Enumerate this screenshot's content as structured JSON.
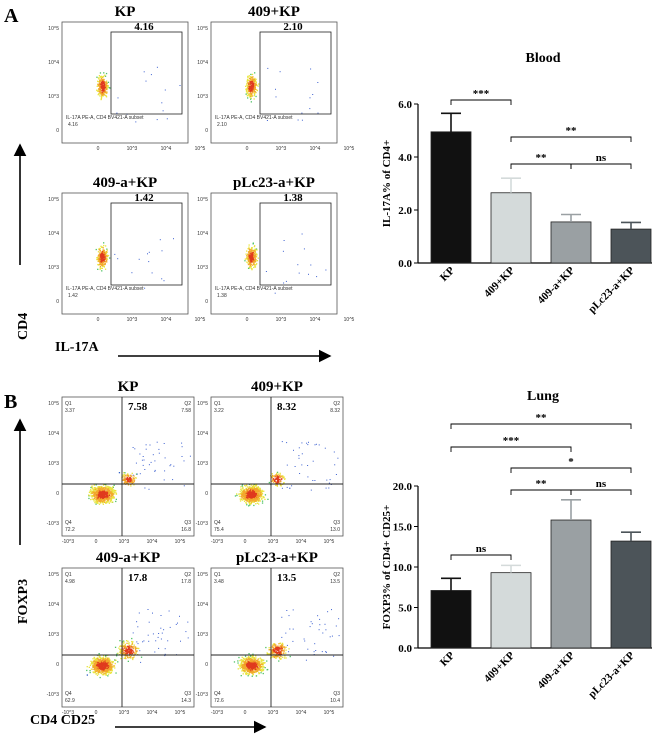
{
  "panels": {
    "A": {
      "letter": "A",
      "y_axis": "CD4",
      "x_axis": "IL-17A"
    },
    "B": {
      "letter": "B",
      "y_axis": "FOXP3",
      "x_axis": "CD4 CD25"
    }
  },
  "flow_A": [
    {
      "title": "KP",
      "value": "4.16",
      "subset_text": "IL-17A PE-A, CD4 BV421-A subset",
      "subset_value": "4.16"
    },
    {
      "title": "409+KP",
      "value": "2.10",
      "subset_text": "IL-17A PE-A, CD4 BV421-A subset",
      "subset_value": "2.10"
    },
    {
      "title": "409-a+KP",
      "value": "1.42",
      "subset_text": "IL-17A PE-A, CD4 BV421-A subset",
      "subset_value": "1.42"
    },
    {
      "title": "pLc23-a+KP",
      "value": "1.38",
      "subset_text": "IL-17A PE-A, CD4 BV421-A subset",
      "subset_value": "1.38"
    }
  ],
  "flow_B": [
    {
      "title": "KP",
      "big": "7.58",
      "q1": "Q1",
      "q1v": "3.37",
      "q2": "Q2",
      "q2v": "7.58",
      "q3": "Q3",
      "q3v": "16.8",
      "q4": "Q4",
      "q4v": "72.2"
    },
    {
      "title": "409+KP",
      "big": "8.32",
      "q1": "Q1",
      "q1v": "3.22",
      "q2": "Q2",
      "q2v": "8.32",
      "q3": "Q3",
      "q3v": "13.0",
      "q4": "Q4",
      "q4v": "75.4"
    },
    {
      "title": "409-a+KP",
      "big": "17.8",
      "q1": "Q1",
      "q1v": "4.98",
      "q2": "Q2",
      "q2v": "17.8",
      "q3": "Q3",
      "q3v": "14.3",
      "q4": "Q4",
      "q4v": "62.9"
    },
    {
      "title": "pLc23-a+KP",
      "big": "13.5",
      "q1": "Q1",
      "q1v": "3.48",
      "q2": "Q2",
      "q2v": "13.5",
      "q3": "Q3",
      "q3v": "10.4",
      "q4": "Q4",
      "q4v": "72.6"
    }
  ],
  "flow_tick_labels": {
    "y_a": [
      "10^5",
      "10^4",
      "10^3",
      "0"
    ],
    "x_a": [
      "0",
      "10^3",
      "10^4",
      "10^5"
    ],
    "y_b": [
      "10^5",
      "10^4",
      "10^3",
      "0",
      "-10^3"
    ],
    "x_b": [
      "-10^3",
      "0",
      "10^3",
      "10^4",
      "10^5"
    ]
  },
  "colors": {
    "black": "#111111",
    "light": "#d4dada",
    "mid": "#9aa0a3",
    "dark": "#4c5459"
  },
  "chart_data": [
    {
      "type": "bar",
      "title": "Blood",
      "ylabel": "IL-17A% of CD4+",
      "categories": [
        "KP",
        "409+KP",
        "409-a+KP",
        "pLc23-a+KP"
      ],
      "values": [
        4.95,
        2.65,
        1.55,
        1.28
      ],
      "errors": [
        0.7,
        0.55,
        0.28,
        0.25
      ],
      "ylim": [
        0,
        6
      ],
      "yticks": [
        "0.0",
        "2.0",
        "4.0",
        "6.0"
      ],
      "significance": [
        {
          "from": 0,
          "to": 1,
          "label": "***",
          "level": 0
        },
        {
          "from": 1,
          "to": 3,
          "label": "**",
          "level": 1
        },
        {
          "from": 1,
          "to": 2,
          "label": "**",
          "level": 0
        },
        {
          "from": 2,
          "to": 3,
          "label": "ns",
          "level": 0
        }
      ]
    },
    {
      "type": "bar",
      "title": "Lung",
      "ylabel": "FOXP3% of CD4+ CD25+",
      "categories": [
        "KP",
        "409+KP",
        "409-a+KP",
        "pLc23-a+KP"
      ],
      "values": [
        7.1,
        9.3,
        15.8,
        13.2
      ],
      "errors": [
        1.5,
        0.9,
        2.5,
        1.1
      ],
      "ylim": [
        0,
        20
      ],
      "yticks": [
        "0.0",
        "5.0",
        "10.0",
        "15.0",
        "20.0"
      ],
      "significance": [
        {
          "from": 0,
          "to": 3,
          "label": "**",
          "level": 3
        },
        {
          "from": 0,
          "to": 2,
          "label": "***",
          "level": 2
        },
        {
          "from": 1,
          "to": 3,
          "label": "*",
          "level": 1
        },
        {
          "from": 1,
          "to": 2,
          "label": "**",
          "level": 0
        },
        {
          "from": 2,
          "to": 3,
          "label": "ns",
          "level": 0
        },
        {
          "from": 0,
          "to": 1,
          "label": "ns",
          "level": 0
        }
      ]
    }
  ]
}
